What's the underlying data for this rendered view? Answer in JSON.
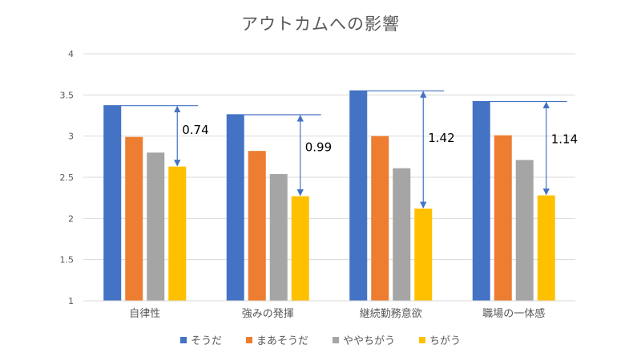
{
  "chart_data": {
    "type": "bar",
    "title": "アウトカムへの影響",
    "categories": [
      "自律性",
      "強みの発揮",
      "継続勤務意欲",
      "職場の一体感"
    ],
    "series": [
      {
        "name": "そうだ",
        "color": "#4472C4",
        "values": [
          3.37,
          3.26,
          3.55,
          3.42
        ]
      },
      {
        "name": "まあそうだ",
        "color": "#ED7D31",
        "values": [
          2.99,
          2.82,
          3.0,
          3.01
        ]
      },
      {
        "name": "ややちがう",
        "color": "#A5A5A5",
        "values": [
          2.8,
          2.54,
          2.61,
          2.71
        ]
      },
      {
        "name": "ちがう",
        "color": "#FFC000",
        "values": [
          2.63,
          2.27,
          2.12,
          2.28
        ]
      }
    ],
    "ylim": [
      1,
      4
    ],
    "yticks": [
      "1",
      "1.5",
      "2",
      "2.5",
      "3",
      "3.5",
      "4"
    ],
    "grid": true,
    "legend_position": "bottom",
    "annotations": [
      {
        "category": "自律性",
        "label": "0.74",
        "from": 3.37,
        "to": 2.63
      },
      {
        "category": "強みの発揮",
        "label": "0.99",
        "from": 3.26,
        "to": 2.27
      },
      {
        "category": "継続勤務意欲",
        "label": "1.42",
        "from": 3.55,
        "to": 2.12
      },
      {
        "category": "職場の一体感",
        "label": "1.14",
        "from": 3.42,
        "to": 2.28
      }
    ],
    "annotation_color": "#4472C4"
  }
}
